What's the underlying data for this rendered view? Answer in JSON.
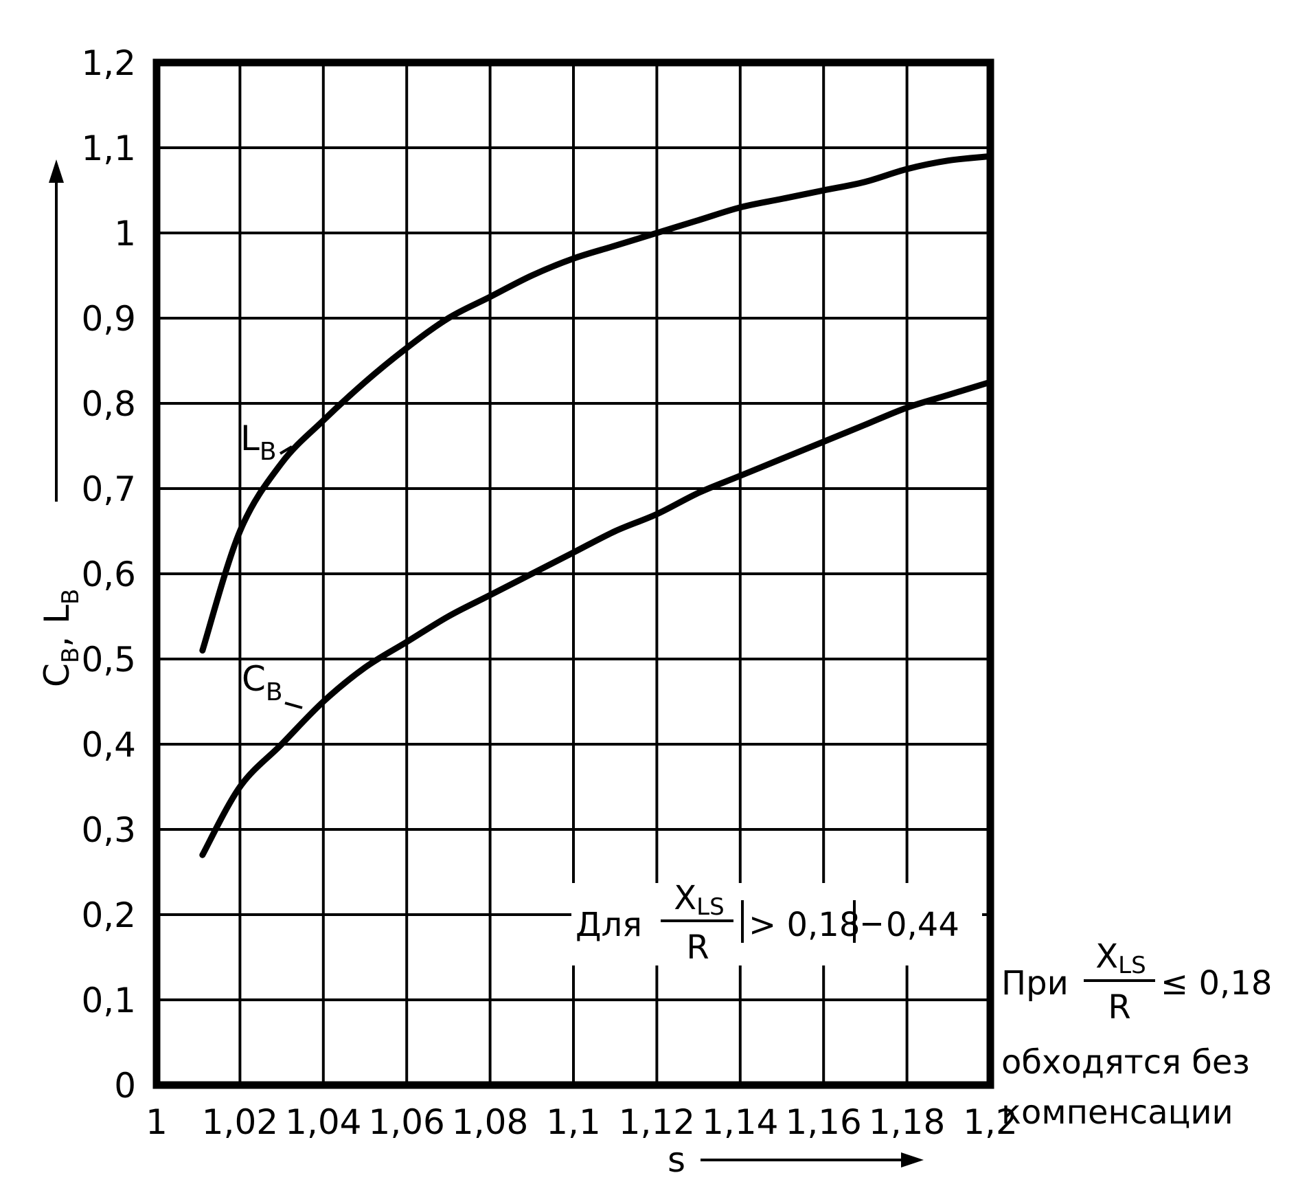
{
  "chart_data": {
    "type": "line",
    "xlabel": "s",
    "ylabel_parts": [
      "C",
      "B",
      ",",
      "L",
      "B"
    ],
    "xlim": [
      1,
      1.2
    ],
    "ylim": [
      0,
      1.2
    ],
    "grid": true,
    "x_ticks": [
      "1",
      "1,02",
      "1,04",
      "1,06",
      "1,08",
      "1,1",
      "1,12",
      "1,14",
      "1,16",
      "1,18",
      "1,2"
    ],
    "y_ticks": [
      "0",
      "0,1",
      "0,2",
      "0,3",
      "0,4",
      "0,5",
      "0,6",
      "0,7",
      "0,8",
      "0,9",
      "1",
      "1,1",
      "1,2"
    ],
    "series": [
      {
        "name": "L_B",
        "label_main": "L",
        "label_sub": "B",
        "x": [
          1.011,
          1.02,
          1.03,
          1.04,
          1.05,
          1.06,
          1.07,
          1.08,
          1.09,
          1.1,
          1.11,
          1.12,
          1.13,
          1.14,
          1.15,
          1.16,
          1.17,
          1.18,
          1.19,
          1.2
        ],
        "values": [
          0.51,
          0.65,
          0.73,
          0.78,
          0.825,
          0.865,
          0.9,
          0.925,
          0.95,
          0.97,
          0.985,
          1.0,
          1.015,
          1.03,
          1.04,
          1.05,
          1.06,
          1.075,
          1.085,
          1.09
        ]
      },
      {
        "name": "C_B",
        "label_main": "C",
        "label_sub": "B",
        "x": [
          1.011,
          1.02,
          1.03,
          1.04,
          1.05,
          1.06,
          1.07,
          1.08,
          1.09,
          1.1,
          1.11,
          1.12,
          1.13,
          1.14,
          1.15,
          1.16,
          1.17,
          1.18,
          1.19,
          1.2
        ],
        "values": [
          0.27,
          0.35,
          0.4,
          0.45,
          0.49,
          0.52,
          0.55,
          0.575,
          0.6,
          0.625,
          0.65,
          0.67,
          0.695,
          0.715,
          0.735,
          0.755,
          0.775,
          0.795,
          0.81,
          0.825
        ]
      }
    ],
    "annotations": {
      "ratio": {
        "numerator_main": "X",
        "numerator_sub": "LS",
        "denominator": "R"
      },
      "line1": {
        "prefix": "Для",
        "condition": "> 0,18",
        "value": "0,44"
      },
      "line2": {
        "prefix": "При",
        "condition": "≤ 0,18",
        "text_a": "обходятся без",
        "text_b": "компенсации"
      }
    }
  }
}
